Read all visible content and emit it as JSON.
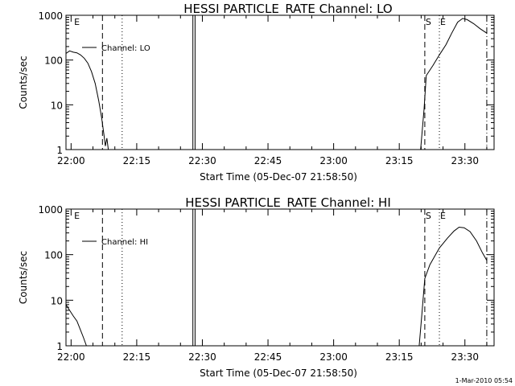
{
  "footer": {
    "timestamp": "1-Mar-2010 05:54"
  },
  "chart_data": [
    {
      "type": "line",
      "title": "HESSI PARTICLE_RATE Channel: LO",
      "xlabel": "Start Time (05-Dec-07 21:58:50)",
      "ylabel": "Counts/sec",
      "yscale": "log",
      "ylim": [
        1,
        1000
      ],
      "xlim": [
        "21:58:50",
        "23:36:40"
      ],
      "x_ticks": [
        "22:00",
        "22:15",
        "22:30",
        "22:45",
        "23:00",
        "23:15",
        "23:30"
      ],
      "y_ticks": [
        "1",
        "10",
        "100",
        "1000"
      ],
      "legend": {
        "position": "top-left",
        "entries": [
          "Channel: LO"
        ]
      },
      "markers": [
        {
          "label": "E",
          "time": "22:00:30",
          "style": "none"
        },
        {
          "label": "",
          "time": "22:07:10",
          "style": "dashed"
        },
        {
          "label": "",
          "time": "22:11:40",
          "style": "dotted"
        },
        {
          "label": "",
          "time": "22:27:50",
          "style": "solid"
        },
        {
          "label": "",
          "time": "22:28:20",
          "style": "solid"
        },
        {
          "label": "S",
          "time": "23:20:50",
          "style": "dashed"
        },
        {
          "label": "E",
          "time": "23:24:10",
          "style": "dotted"
        },
        {
          "label": "",
          "time": "23:35:00",
          "style": "dash-dot"
        }
      ],
      "series": [
        {
          "segments": [
            [
              [
                "21:58:50",
                140
              ],
              [
                "21:59:40",
                160
              ],
              [
                "22:00:30",
                150
              ],
              [
                "22:01:20",
                145
              ],
              [
                "22:02:10",
                130
              ],
              [
                "22:03:00",
                110
              ],
              [
                "22:03:50",
                85
              ],
              [
                "22:04:40",
                55
              ],
              [
                "22:05:30",
                30
              ],
              [
                "22:06:20",
                12
              ],
              [
                "22:07:00",
                5
              ],
              [
                "22:07:30",
                2.2
              ],
              [
                "22:07:50",
                1.2
              ],
              [
                "22:08:10",
                1.8
              ],
              [
                "22:08:30",
                1
              ],
              [
                "22:09:00",
                0.9
              ]
            ],
            [
              [
                "23:19:50",
                0.9
              ],
              [
                "23:20:40",
                8
              ],
              [
                "23:21:10",
                45
              ],
              [
                "23:22:40",
                75
              ],
              [
                "23:24:10",
                130
              ],
              [
                "23:25:40",
                220
              ],
              [
                "23:27:00",
                400
              ],
              [
                "23:28:20",
                700
              ],
              [
                "23:29:30",
                850
              ],
              [
                "23:30:30",
                800
              ],
              [
                "23:32:00",
                650
              ],
              [
                "23:33:30",
                500
              ],
              [
                "23:35:00",
                400
              ]
            ]
          ]
        }
      ]
    },
    {
      "type": "line",
      "title": "HESSI PARTICLE_RATE Channel: HI",
      "xlabel": "Start Time (05-Dec-07 21:58:50)",
      "ylabel": "Counts/sec",
      "yscale": "log",
      "ylim": [
        1,
        1000
      ],
      "xlim": [
        "21:58:50",
        "23:36:40"
      ],
      "x_ticks": [
        "22:00",
        "22:15",
        "22:30",
        "22:45",
        "23:00",
        "23:15",
        "23:30"
      ],
      "y_ticks": [
        "1",
        "10",
        "100",
        "1000"
      ],
      "legend": {
        "position": "top-left",
        "entries": [
          "Channel: HI"
        ]
      },
      "markers": [
        {
          "label": "E",
          "time": "22:00:30",
          "style": "none"
        },
        {
          "label": "",
          "time": "22:07:10",
          "style": "dashed"
        },
        {
          "label": "",
          "time": "22:11:40",
          "style": "dotted"
        },
        {
          "label": "",
          "time": "22:27:50",
          "style": "solid"
        },
        {
          "label": "",
          "time": "22:28:20",
          "style": "solid"
        },
        {
          "label": "S",
          "time": "23:20:50",
          "style": "dashed"
        },
        {
          "label": "E",
          "time": "23:24:10",
          "style": "dotted"
        },
        {
          "label": "",
          "time": "23:35:00",
          "style": "dash-dot"
        }
      ],
      "series": [
        {
          "segments": [
            [
              [
                "21:58:50",
                8
              ],
              [
                "21:59:40",
                6
              ],
              [
                "22:00:30",
                4.5
              ],
              [
                "22:01:20",
                3.5
              ],
              [
                "22:02:10",
                2.2
              ],
              [
                "22:02:50",
                1.5
              ],
              [
                "22:03:30",
                1
              ],
              [
                "22:04:00",
                0.9
              ]
            ],
            [
              [
                "23:19:30",
                0.9
              ],
              [
                "23:20:10",
                5
              ],
              [
                "23:20:50",
                30
              ],
              [
                "23:22:00",
                60
              ],
              [
                "23:24:10",
                140
              ],
              [
                "23:26:00",
                230
              ],
              [
                "23:27:30",
                330
              ],
              [
                "23:28:40",
                400
              ],
              [
                "23:29:50",
                390
              ],
              [
                "23:31:10",
                320
              ],
              [
                "23:32:40",
                200
              ],
              [
                "23:34:00",
                110
              ],
              [
                "23:35:00",
                75
              ]
            ]
          ]
        }
      ]
    }
  ]
}
